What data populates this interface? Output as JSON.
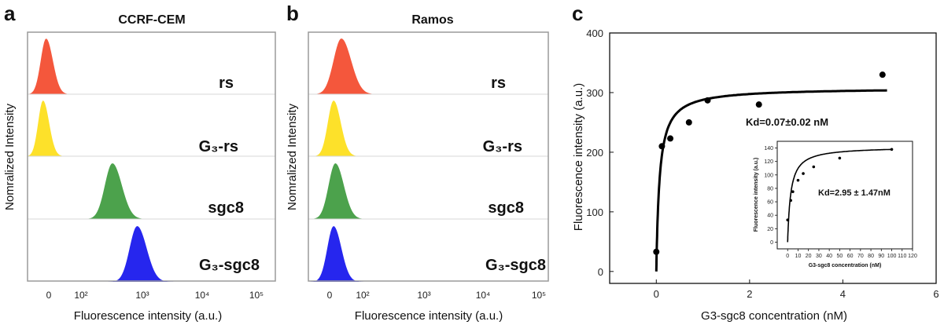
{
  "panel_labels": {
    "a": "a",
    "b": "b",
    "c": "c"
  },
  "histograms": {
    "x_tick_labels": [
      "0",
      "10²",
      "10³",
      "10⁴",
      "10⁵"
    ],
    "xlabel": "Fluorescence intensity (a.u.)",
    "ylabel": "Nomralized Intensity",
    "sample_labels": [
      "rs",
      "G₃-rs",
      "sgc8",
      "G₃-sgc8"
    ],
    "sample_colors": [
      "#f4573c",
      "#fde12a",
      "#4ca24c",
      "#2626ee"
    ]
  },
  "chart_data": [
    {
      "type": "area",
      "title": "CCRF-CEM",
      "xlabel": "Fluorescence intensity (a.u.)",
      "ylabel": "Nomralized Intensity",
      "x_scale": "log (biexponential)",
      "x_tick_labels": [
        "0",
        "10²",
        "10³",
        "10⁴",
        "10⁵"
      ],
      "series": [
        {
          "name": "rs",
          "color": "#f4573c",
          "peak_position": 0.3,
          "width": 0.2
        },
        {
          "name": "G₃-rs",
          "color": "#fde12a",
          "peak_position": 0.25,
          "width": 0.18
        },
        {
          "name": "sgc8",
          "color": "#4ca24c",
          "peak_position": 1.37,
          "width": 0.28
        },
        {
          "name": "G₃-sgc8",
          "color": "#2626ee",
          "peak_position": 1.77,
          "width": 0.28
        }
      ]
    },
    {
      "type": "area",
      "title": "Ramos",
      "xlabel": "Fluorescence intensity (a.u.)",
      "ylabel": "Nomralized Intensity",
      "x_scale": "log (biexponential)",
      "x_tick_labels": [
        "0",
        "10²",
        "10³",
        "10⁴",
        "10⁵"
      ],
      "series": [
        {
          "name": "rs",
          "color": "#f4573c",
          "peak_position": 0.55,
          "width": 0.3
        },
        {
          "name": "G₃-rs",
          "color": "#fde12a",
          "peak_position": 0.42,
          "width": 0.22
        },
        {
          "name": "sgc8",
          "color": "#4ca24c",
          "peak_position": 0.45,
          "width": 0.26
        },
        {
          "name": "G₃-sgc8",
          "color": "#2626ee",
          "peak_position": 0.42,
          "width": 0.24
        }
      ]
    },
    {
      "type": "scatter",
      "title": "",
      "xlabel": "G3-sgc8 concentration (nM)",
      "ylabel": "Fluorescence intensity (a.u.)",
      "xlim": [
        -1,
        6
      ],
      "ylim": [
        -20,
        400
      ],
      "x_ticks": [
        0,
        2,
        4,
        6
      ],
      "y_ticks": [
        0,
        100,
        200,
        300,
        400
      ],
      "x": [
        0.0,
        0.12,
        0.3,
        0.7,
        1.1,
        2.2,
        4.85
      ],
      "y": [
        33,
        210,
        223,
        250,
        287,
        280,
        330
      ],
      "fit": {
        "type": "one-site binding",
        "Bmax": 308,
        "Kd": 0.07
      },
      "annotation": "Kd=0.07±0.02 nM",
      "inset": {
        "type": "scatter",
        "xlabel": "G3-sgc8 concentration (nM)",
        "ylabel": "Fluorescence intensity (a.u.)",
        "xlim": [
          -10,
          120
        ],
        "ylim": [
          -10,
          150
        ],
        "x_ticks": [
          0,
          10,
          20,
          30,
          40,
          50,
          60,
          70,
          80,
          90,
          100,
          110,
          120
        ],
        "y_ticks": [
          0,
          20,
          40,
          60,
          80,
          100,
          120,
          140
        ],
        "x": [
          0,
          3,
          5,
          10,
          15,
          25,
          50,
          100
        ],
        "y": [
          33,
          62,
          75,
          92,
          102,
          112,
          125,
          138
        ],
        "fit": {
          "type": "one-site binding",
          "Bmax": 142,
          "Kd": 2.95
        },
        "annotation": "Kd=2.95 ± 1.47nM"
      }
    }
  ]
}
